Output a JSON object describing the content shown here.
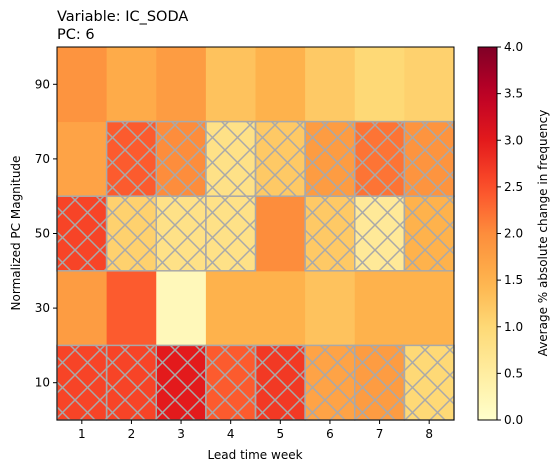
{
  "chart_data": {
    "type": "heatmap",
    "title_lines": [
      "Variable: IC_SODA",
      "PC: 6"
    ],
    "xlabel": "Lead time week",
    "ylabel": "Normalized PC Magnitude",
    "x_categories": [
      "1",
      "2",
      "3",
      "4",
      "5",
      "6",
      "7",
      "8"
    ],
    "y_categories": [
      "10",
      "30",
      "50",
      "70",
      "90"
    ],
    "colorbar": {
      "label": "Average % absolute change in frequency",
      "colormap": "YlOrRd",
      "vmin": 0.0,
      "vmax": 4.0,
      "ticks": [
        "0.0",
        "0.5",
        "1.0",
        "1.5",
        "2.0",
        "2.5",
        "3.0",
        "3.5",
        "4.0"
      ]
    },
    "values": [
      [
        2.6,
        2.6,
        3.0,
        2.4,
        2.7,
        1.7,
        1.8,
        1.0
      ],
      [
        1.8,
        2.4,
        0.2,
        1.5,
        1.5,
        1.3,
        1.5,
        1.5
      ],
      [
        2.6,
        1.1,
        0.8,
        0.8,
        2.0,
        1.2,
        0.6,
        1.5
      ],
      [
        1.7,
        2.4,
        2.0,
        0.8,
        1.2,
        1.8,
        2.2,
        1.9
      ],
      [
        1.9,
        1.6,
        1.8,
        1.3,
        1.5,
        1.2,
        1.0,
        1.1
      ]
    ],
    "hatched": [
      [
        true,
        true,
        true,
        true,
        true,
        true,
        true,
        true
      ],
      [
        false,
        false,
        false,
        false,
        false,
        false,
        false,
        false
      ],
      [
        true,
        true,
        true,
        true,
        false,
        true,
        true,
        true
      ],
      [
        false,
        true,
        true,
        true,
        true,
        true,
        true,
        true
      ],
      [
        false,
        false,
        false,
        false,
        false,
        false,
        false,
        false
      ]
    ]
  }
}
